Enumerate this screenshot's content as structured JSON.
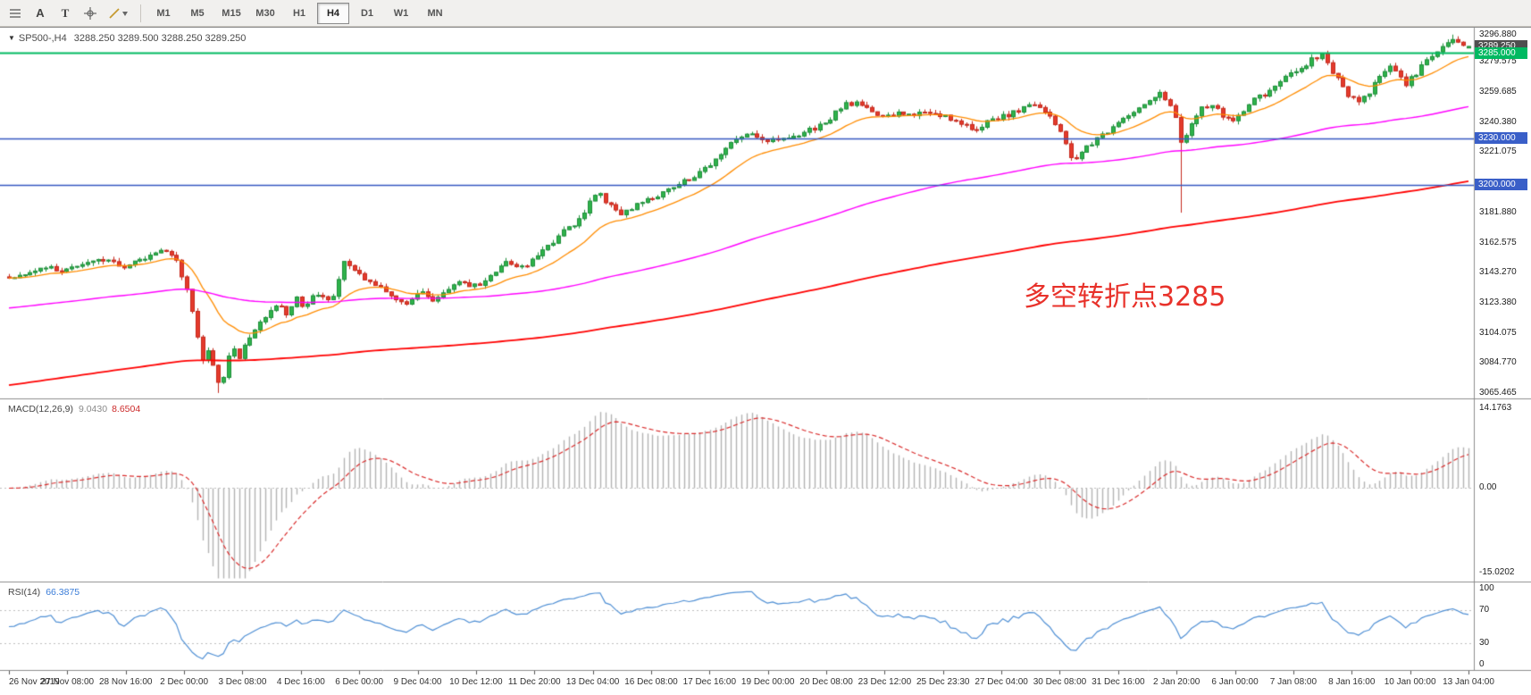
{
  "toolbar": {
    "a_label": "A",
    "t_label": "T",
    "timeframes": [
      "M1",
      "M5",
      "M15",
      "M30",
      "H1",
      "H4",
      "D1",
      "W1",
      "MN"
    ],
    "active_timeframe": "H4"
  },
  "chart": {
    "title": "SP500-,H4",
    "ohlc": "3288.250 3289.500 3288.250 3289.250",
    "annotation": {
      "text": "多空转折点3285",
      "color": "#e8312a"
    },
    "price_axis": {
      "labels": [
        {
          "text": "3296.880",
          "price": 3296.88
        },
        {
          "text": "3279.575",
          "price": 3279.575
        },
        {
          "text": "3259.685",
          "price": 3259.685
        },
        {
          "text": "3240.380",
          "price": 3240.38
        },
        {
          "text": "3221.075",
          "price": 3221.075
        },
        {
          "text": "3181.880",
          "price": 3181.88
        },
        {
          "text": "3162.575",
          "price": 3162.575
        },
        {
          "text": "3143.270",
          "price": 3143.27
        },
        {
          "text": "3123.380",
          "price": 3123.38
        },
        {
          "text": "3104.075",
          "price": 3104.075
        },
        {
          "text": "3084.770",
          "price": 3084.77
        },
        {
          "text": "3065.465",
          "price": 3065.465
        }
      ]
    },
    "tags": [
      {
        "text": "3289.250",
        "price": 3289.25,
        "bg": "#4f4f4f",
        "interactable": "false"
      },
      {
        "text": "3285.000",
        "price": 3285.0,
        "bg": "#00b961",
        "interactable": "true"
      },
      {
        "text": "3230.000",
        "price": 3230.0,
        "bg": "#3a5fc8",
        "interactable": "true"
      },
      {
        "text": "3200.000",
        "price": 3200.0,
        "bg": "#3a5fc8",
        "interactable": "true"
      }
    ],
    "hlines": [
      {
        "price": 3285.0,
        "color": "#00b961",
        "width": 2
      },
      {
        "price": 3230.0,
        "color": "#3558c0",
        "width": 1.5
      },
      {
        "price": 3200.0,
        "color": "#3558c0",
        "width": 1.5
      }
    ]
  },
  "macd": {
    "label": "MACD(12,26,9)",
    "value_main": "9.0430",
    "value_signal": "8.6504",
    "axis": [
      {
        "text": "14.1763",
        "v": 14.1763
      },
      {
        "text": "0.00",
        "v": 0
      },
      {
        "text": "-15.0202",
        "v": -15.0202
      }
    ],
    "scale": {
      "max": 15.6,
      "min": -16.4
    }
  },
  "rsi": {
    "label": "RSI(14)",
    "value": "66.3875",
    "axis": [
      {
        "text": "100",
        "v": 100
      },
      {
        "text": "70",
        "v": 70
      },
      {
        "text": "30",
        "v": 30
      },
      {
        "text": "0",
        "v": 0
      }
    ],
    "levels": [
      70,
      30
    ]
  },
  "dates": [
    "26 Nov 2019",
    "27 Nov 08:00",
    "28 Nov 16:00",
    "2 Dec 00:00",
    "3 Dec 08:00",
    "4 Dec 16:00",
    "6 Dec 00:00",
    "9 Dec 04:00",
    "10 Dec 12:00",
    "11 Dec 20:00",
    "13 Dec 04:00",
    "16 Dec 08:00",
    "17 Dec 16:00",
    "19 Dec 00:00",
    "20 Dec 08:00",
    "23 Dec 12:00",
    "25 Dec 23:30",
    "27 Dec 04:00",
    "30 Dec 08:00",
    "31 Dec 16:00",
    "2 Jan 20:00",
    "6 Jan 00:00",
    "7 Jan 08:00",
    "8 Jan 16:00",
    "10 Jan 00:00",
    "13 Jan 04:00"
  ],
  "colors": {
    "candle_up_fill": "#2fb34b",
    "candle_up_border": "#1e8e3a",
    "candle_down_fill": "#e43b2c",
    "candle_down_border": "#c5281c",
    "ma_fast": "#ff8c00",
    "ma_mid": "#ff00ff",
    "ma_slow": "#ff0000",
    "macd_hist": "#b3b3b3",
    "macd_signal": "#d92b2b",
    "rsi_line": "#4f8fd4",
    "level_dotted": "#bdbdbd",
    "separator": "#8c8c8c",
    "tick": "#555555"
  },
  "chart_data": {
    "type": "candlestick",
    "symbol": "SP500-",
    "timeframe": "H4",
    "candles": 280,
    "seed": 20200113,
    "noise": 3.5,
    "wick": 2.4,
    "price_scale": {
      "top": 3300.2,
      "bottom": 3062.5
    },
    "low_extreme": {
      "f": 0.145,
      "price": 3065.465
    },
    "spike_low": {
      "f": 0.804,
      "price": 3181.88
    },
    "high_extreme": {
      "f": 0.991,
      "price": 3296.88
    },
    "last": {
      "o": 3288.25,
      "h": 3289.5,
      "l": 3288.25,
      "c": 3289.25
    },
    "ma": {
      "fast": {
        "period": 16
      },
      "mid": {
        "period": 120,
        "seed": 3120
      },
      "slow": {
        "period": 300,
        "seed": 3070
      }
    },
    "macd_params": {
      "fast": 12,
      "slow": 26,
      "signal": 9
    },
    "rsi_params": {
      "period": 14
    },
    "price_anchors": [
      [
        0.0,
        3139
      ],
      [
        0.012,
        3143
      ],
      [
        0.025,
        3147
      ],
      [
        0.038,
        3144
      ],
      [
        0.052,
        3149
      ],
      [
        0.065,
        3152
      ],
      [
        0.078,
        3147
      ],
      [
        0.09,
        3151
      ],
      [
        0.1,
        3155
      ],
      [
        0.108,
        3157
      ],
      [
        0.115,
        3150
      ],
      [
        0.122,
        3132
      ],
      [
        0.128,
        3106
      ],
      [
        0.133,
        3086
      ],
      [
        0.137,
        3095
      ],
      [
        0.141,
        3079
      ],
      [
        0.145,
        3070
      ],
      [
        0.149,
        3084
      ],
      [
        0.153,
        3097
      ],
      [
        0.158,
        3089
      ],
      [
        0.164,
        3101
      ],
      [
        0.17,
        3109
      ],
      [
        0.177,
        3117
      ],
      [
        0.184,
        3124
      ],
      [
        0.19,
        3117
      ],
      [
        0.197,
        3126
      ],
      [
        0.203,
        3121
      ],
      [
        0.21,
        3129
      ],
      [
        0.217,
        3125
      ],
      [
        0.224,
        3131
      ],
      [
        0.229,
        3149
      ],
      [
        0.236,
        3145
      ],
      [
        0.244,
        3140
      ],
      [
        0.253,
        3134
      ],
      [
        0.263,
        3127
      ],
      [
        0.272,
        3122
      ],
      [
        0.281,
        3130
      ],
      [
        0.29,
        3126
      ],
      [
        0.3,
        3132
      ],
      [
        0.31,
        3137
      ],
      [
        0.32,
        3134
      ],
      [
        0.331,
        3142
      ],
      [
        0.34,
        3149
      ],
      [
        0.35,
        3145
      ],
      [
        0.36,
        3153
      ],
      [
        0.37,
        3160
      ],
      [
        0.38,
        3170
      ],
      [
        0.39,
        3177
      ],
      [
        0.398,
        3188
      ],
      [
        0.404,
        3195
      ],
      [
        0.411,
        3187
      ],
      [
        0.419,
        3181
      ],
      [
        0.428,
        3186
      ],
      [
        0.438,
        3191
      ],
      [
        0.448,
        3195
      ],
      [
        0.458,
        3200
      ],
      [
        0.468,
        3205
      ],
      [
        0.478,
        3211
      ],
      [
        0.487,
        3220
      ],
      [
        0.495,
        3229
      ],
      [
        0.505,
        3232
      ],
      [
        0.515,
        3230
      ],
      [
        0.525,
        3228
      ],
      [
        0.535,
        3231
      ],
      [
        0.545,
        3234
      ],
      [
        0.555,
        3238
      ],
      [
        0.565,
        3245
      ],
      [
        0.574,
        3252
      ],
      [
        0.582,
        3254
      ],
      [
        0.59,
        3249
      ],
      [
        0.6,
        3243
      ],
      [
        0.61,
        3247
      ],
      [
        0.621,
        3245
      ],
      [
        0.632,
        3248
      ],
      [
        0.642,
        3243
      ],
      [
        0.652,
        3239
      ],
      [
        0.661,
        3236
      ],
      [
        0.671,
        3240
      ],
      [
        0.681,
        3244
      ],
      [
        0.691,
        3247
      ],
      [
        0.7,
        3252
      ],
      [
        0.709,
        3247
      ],
      [
        0.717,
        3240
      ],
      [
        0.724,
        3227
      ],
      [
        0.729,
        3215
      ],
      [
        0.735,
        3221
      ],
      [
        0.742,
        3227
      ],
      [
        0.75,
        3233
      ],
      [
        0.759,
        3239
      ],
      [
        0.769,
        3245
      ],
      [
        0.779,
        3252
      ],
      [
        0.788,
        3259
      ],
      [
        0.794,
        3253
      ],
      [
        0.799,
        3243
      ],
      [
        0.804,
        3224
      ],
      [
        0.809,
        3237
      ],
      [
        0.815,
        3247
      ],
      [
        0.822,
        3252
      ],
      [
        0.83,
        3246
      ],
      [
        0.838,
        3242
      ],
      [
        0.846,
        3249
      ],
      [
        0.854,
        3255
      ],
      [
        0.862,
        3259
      ],
      [
        0.87,
        3265
      ],
      [
        0.878,
        3271
      ],
      [
        0.886,
        3276
      ],
      [
        0.893,
        3281
      ],
      [
        0.899,
        3284
      ],
      [
        0.905,
        3276
      ],
      [
        0.911,
        3267
      ],
      [
        0.917,
        3259
      ],
      [
        0.924,
        3252
      ],
      [
        0.931,
        3259
      ],
      [
        0.938,
        3268
      ],
      [
        0.945,
        3276
      ],
      [
        0.951,
        3271
      ],
      [
        0.957,
        3264
      ],
      [
        0.963,
        3271
      ],
      [
        0.97,
        3278
      ],
      [
        0.977,
        3284
      ],
      [
        0.984,
        3289
      ],
      [
        0.991,
        3294
      ],
      [
        1.0,
        3289.3
      ]
    ]
  }
}
